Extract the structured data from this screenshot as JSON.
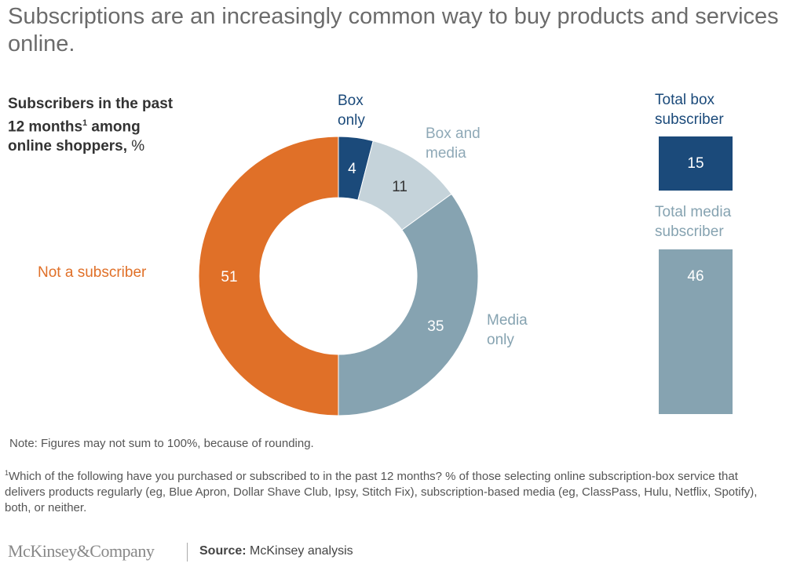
{
  "title": "Subscriptions are an increasingly common way to buy products and services online.",
  "subtitle": {
    "line1": "Subscribers in the past",
    "line2a": "12 months",
    "sup": "1",
    "line2b": " among",
    "line3": "online shoppers,",
    "unit": " %"
  },
  "chart_data": [
    {
      "type": "pie",
      "donut": true,
      "start": "top, clockwise",
      "slices": [
        {
          "label_lines": [
            "Box",
            "only"
          ],
          "value": 4,
          "color": "#1B4A7A",
          "label_color": "#1B4A7A",
          "value_color": "#ffffff"
        },
        {
          "label_lines": [
            "Box and",
            "media"
          ],
          "value": 11,
          "color": "#C5D3DA",
          "label_color": "#8FA9B7",
          "value_color": "#333333"
        },
        {
          "label_lines": [
            "Media",
            "only"
          ],
          "value": 35,
          "color": "#86A3B1",
          "label_color": "#86A3B1",
          "value_color": "#ffffff"
        },
        {
          "label_lines": [
            "Not a subscriber"
          ],
          "value": 51,
          "color": "#E07028",
          "label_color": "#E07028",
          "value_color": "#ffffff"
        }
      ]
    },
    {
      "type": "bar",
      "categories": [
        "Total box subscriber",
        "Total media subscriber"
      ],
      "label_lines": [
        [
          "Total box",
          "subscriber"
        ],
        [
          "Total media",
          "subscriber"
        ]
      ],
      "values": [
        15,
        46
      ],
      "colors": [
        "#1B4A7A",
        "#86A3B1"
      ],
      "label_colors": [
        "#1B4A7A",
        "#86A3B1"
      ]
    }
  ],
  "note": "Note: Figures may not sum to 100%, because of rounding.",
  "footnote": {
    "sup": "1",
    "text": "Which of the following have you purchased or subscribed to in the past 12 months? % of those selecting online subscription-box service that delivers products regularly (eg, Blue Apron, Dollar Shave Club, Ipsy, Stitch Fix), subscription-based media (eg, ClassPass, Hulu, Netflix, Spotify), both, or neither."
  },
  "footer": {
    "brand": "McKinsey&Company",
    "source_label": "Source:",
    "source_text": " McKinsey analysis"
  }
}
